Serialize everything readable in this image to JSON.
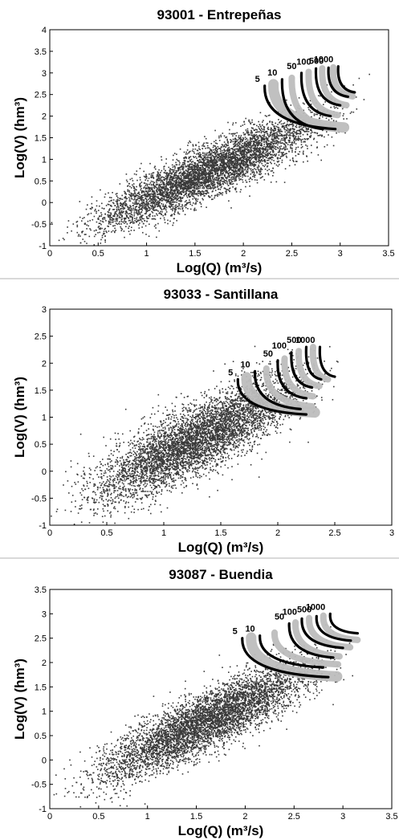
{
  "chart_data": [
    {
      "type": "scatter",
      "title": "93001 - Entrepeñas",
      "xlabel": "Log(Q) (m³/s)",
      "ylabel": "Log(V) (hm³)",
      "xlim": [
        0,
        3.5
      ],
      "ylim": [
        -1,
        4
      ],
      "xticks": [
        "0",
        "0.5",
        "1",
        "1.5",
        "2",
        "2.5",
        "3",
        "3.5"
      ],
      "yticks": [
        "-1",
        "-0.5",
        "0",
        "0.5",
        "1",
        "1.5",
        "2",
        "2.5",
        "3",
        "3.5",
        "4"
      ],
      "cloud": {
        "slope": 0.98,
        "intercept": -0.88,
        "xrange": [
          0.0,
          3.3
        ],
        "spread": 0.3
      },
      "curves": [
        {
          "label": "5",
          "x_top": 2.22,
          "y_top": 2.7,
          "x_end": 2.95,
          "y_end": 1.7
        },
        {
          "label": "10",
          "x_top": 2.4,
          "y_top": 2.85,
          "x_end": 2.82,
          "y_end": 1.7
        },
        {
          "label": "50",
          "x_top": 2.6,
          "y_top": 3.0,
          "x_end": 2.9,
          "y_end": 2.0
        },
        {
          "label": "100",
          "x_top": 2.75,
          "y_top": 3.1,
          "x_end": 3.0,
          "y_end": 2.25
        },
        {
          "label": "500",
          "x_top": 2.88,
          "y_top": 3.12,
          "x_end": 3.08,
          "y_end": 2.45
        },
        {
          "label": "1000",
          "x_top": 2.98,
          "y_top": 3.15,
          "x_end": 3.15,
          "y_end": 2.55
        }
      ],
      "colors": {
        "points": "#3a3a3a",
        "band": "#bdbdbd",
        "curves": "#000000"
      }
    },
    {
      "type": "scatter",
      "title": "93033 - Santillana",
      "xlabel": "Log(Q) (m³/s)",
      "ylabel": "Log(V) (hm³)",
      "xlim": [
        0,
        3
      ],
      "ylim": [
        -1,
        3
      ],
      "xticks": [
        "0",
        "0.5",
        "1",
        "1.5",
        "2",
        "2.5",
        "3"
      ],
      "yticks": [
        "-1",
        "-0.5",
        "0",
        "0.5",
        "1",
        "1.5",
        "2",
        "2.5",
        "3"
      ],
      "cloud": {
        "slope": 1.05,
        "intercept": -0.75,
        "xrange": [
          0.0,
          2.6
        ],
        "spread": 0.32
      },
      "curves": [
        {
          "label": "5",
          "x_top": 1.65,
          "y_top": 1.7,
          "x_end": 2.25,
          "y_end": 1.05
        },
        {
          "label": "10",
          "x_top": 1.8,
          "y_top": 1.85,
          "x_end": 2.2,
          "y_end": 1.15
        },
        {
          "label": "50",
          "x_top": 2.0,
          "y_top": 2.05,
          "x_end": 2.25,
          "y_end": 1.35
        },
        {
          "label": "100",
          "x_top": 2.12,
          "y_top": 2.2,
          "x_end": 2.3,
          "y_end": 1.55
        },
        {
          "label": "500",
          "x_top": 2.25,
          "y_top": 2.3,
          "x_end": 2.38,
          "y_end": 1.7
        },
        {
          "label": "1000",
          "x_top": 2.37,
          "y_top": 2.3,
          "x_end": 2.5,
          "y_end": 1.75
        }
      ],
      "colors": {
        "points": "#3a3a3a",
        "band": "#bdbdbd",
        "curves": "#000000"
      }
    },
    {
      "type": "scatter",
      "title": "93087 - Buendia",
      "xlabel": "Log(Q) (m³/s)",
      "ylabel": "Log(V) (hm³)",
      "xlim": [
        0,
        3.5
      ],
      "ylim": [
        -1,
        3.5
      ],
      "xticks": [
        "0",
        "0.5",
        "1",
        "1.5",
        "2",
        "2.5",
        "3",
        "3.5"
      ],
      "yticks": [
        "-1",
        "-0.5",
        "0",
        "0.5",
        "1",
        "1.5",
        "2",
        "2.5",
        "3",
        "3.5"
      ],
      "cloud": {
        "slope": 0.97,
        "intercept": -0.75,
        "xrange": [
          0.0,
          3.2
        ],
        "spread": 0.3
      },
      "curves": [
        {
          "label": "5",
          "x_top": 1.97,
          "y_top": 2.5,
          "x_end": 2.85,
          "y_end": 1.7
        },
        {
          "label": "10",
          "x_top": 2.15,
          "y_top": 2.55,
          "x_end": 2.8,
          "y_end": 1.9
        },
        {
          "label": "50",
          "x_top": 2.45,
          "y_top": 2.8,
          "x_end": 2.9,
          "y_end": 2.1
        },
        {
          "label": "100",
          "x_top": 2.58,
          "y_top": 2.9,
          "x_end": 3.0,
          "y_end": 2.3
        },
        {
          "label": "500",
          "x_top": 2.73,
          "y_top": 2.95,
          "x_end": 3.08,
          "y_end": 2.45
        },
        {
          "label": "1000",
          "x_top": 2.87,
          "y_top": 3.0,
          "x_end": 3.15,
          "y_end": 2.6
        }
      ],
      "colors": {
        "points": "#3a3a3a",
        "band": "#bdbdbd",
        "curves": "#000000"
      }
    }
  ]
}
